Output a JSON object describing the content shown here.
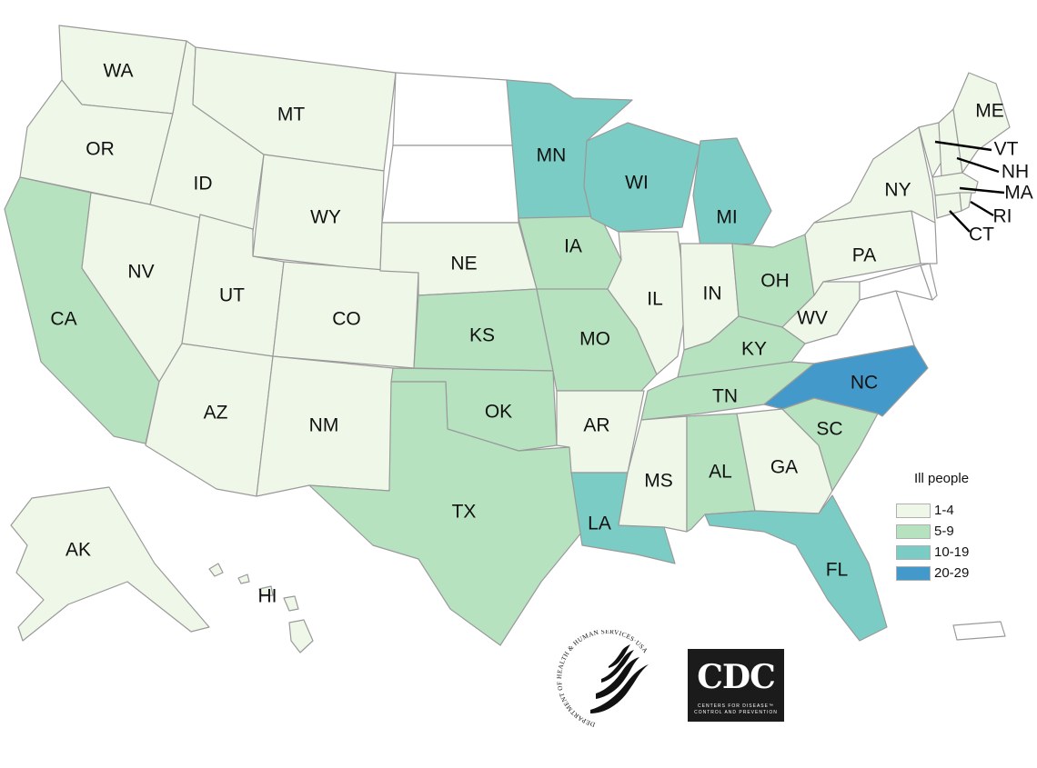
{
  "colors": {
    "bin_1_4": "#eff7e8",
    "bin_5_9": "#b6e2c0",
    "bin_10_19": "#7accc5",
    "bin_20_29": "#4499cb",
    "none": "#ffffff",
    "border": "#9a9a9a"
  },
  "legend": {
    "title": "Ill people",
    "items": [
      {
        "label": "1-4",
        "bin": "bin_1_4"
      },
      {
        "label": "5-9",
        "bin": "bin_5_9"
      },
      {
        "label": "10-19",
        "bin": "bin_10_19"
      },
      {
        "label": "20-29",
        "bin": "bin_20_29"
      }
    ]
  },
  "states": {
    "WA": {
      "label": "WA",
      "bin": "bin_1_4"
    },
    "OR": {
      "label": "OR",
      "bin": "bin_1_4"
    },
    "CA": {
      "label": "CA",
      "bin": "bin_5_9"
    },
    "NV": {
      "label": "NV",
      "bin": "bin_1_4"
    },
    "ID": {
      "label": "ID",
      "bin": "bin_1_4"
    },
    "MT": {
      "label": "MT",
      "bin": "bin_1_4"
    },
    "WY": {
      "label": "WY",
      "bin": "bin_1_4"
    },
    "UT": {
      "label": "UT",
      "bin": "bin_1_4"
    },
    "AZ": {
      "label": "AZ",
      "bin": "bin_1_4"
    },
    "CO": {
      "label": "CO",
      "bin": "bin_1_4"
    },
    "NM": {
      "label": "NM",
      "bin": "bin_1_4"
    },
    "ND": {
      "label": "",
      "bin": "none"
    },
    "SD": {
      "label": "",
      "bin": "none"
    },
    "NE": {
      "label": "NE",
      "bin": "bin_1_4"
    },
    "KS": {
      "label": "KS",
      "bin": "bin_5_9"
    },
    "OK": {
      "label": "OK",
      "bin": "bin_5_9"
    },
    "TX": {
      "label": "TX",
      "bin": "bin_5_9"
    },
    "MN": {
      "label": "MN",
      "bin": "bin_10_19"
    },
    "IA": {
      "label": "IA",
      "bin": "bin_5_9"
    },
    "MO": {
      "label": "MO",
      "bin": "bin_5_9"
    },
    "AR": {
      "label": "AR",
      "bin": "bin_1_4"
    },
    "LA": {
      "label": "LA",
      "bin": "bin_10_19"
    },
    "WI": {
      "label": "WI",
      "bin": "bin_10_19"
    },
    "IL": {
      "label": "IL",
      "bin": "bin_1_4"
    },
    "MI": {
      "label": "MI",
      "bin": "bin_10_19"
    },
    "IN": {
      "label": "IN",
      "bin": "bin_1_4"
    },
    "OH": {
      "label": "OH",
      "bin": "bin_5_9"
    },
    "KY": {
      "label": "KY",
      "bin": "bin_5_9"
    },
    "TN": {
      "label": "TN",
      "bin": "bin_5_9"
    },
    "MS": {
      "label": "MS",
      "bin": "bin_1_4"
    },
    "AL": {
      "label": "AL",
      "bin": "bin_5_9"
    },
    "GA": {
      "label": "GA",
      "bin": "bin_1_4"
    },
    "FL": {
      "label": "FL",
      "bin": "bin_10_19"
    },
    "SC": {
      "label": "SC",
      "bin": "bin_5_9"
    },
    "NC": {
      "label": "NC",
      "bin": "bin_20_29"
    },
    "VA": {
      "label": "",
      "bin": "none"
    },
    "WV": {
      "label": "WV",
      "bin": "bin_1_4"
    },
    "PA": {
      "label": "PA",
      "bin": "bin_1_4"
    },
    "NY": {
      "label": "NY",
      "bin": "bin_1_4"
    },
    "ME": {
      "label": "ME",
      "bin": "bin_1_4"
    },
    "VT": {
      "label": "VT",
      "bin": "bin_1_4"
    },
    "NH": {
      "label": "NH",
      "bin": "bin_1_4"
    },
    "MA": {
      "label": "MA",
      "bin": "bin_1_4"
    },
    "RI": {
      "label": "RI",
      "bin": "bin_1_4"
    },
    "CT": {
      "label": "CT",
      "bin": "bin_1_4"
    },
    "NJ": {
      "label": "",
      "bin": "none"
    },
    "MD": {
      "label": "",
      "bin": "none"
    },
    "DE": {
      "label": "",
      "bin": "none"
    },
    "AK": {
      "label": "AK",
      "bin": "bin_1_4"
    },
    "HI": {
      "label": "HI",
      "bin": "bin_1_4"
    },
    "PR": {
      "label": "",
      "bin": "none"
    }
  },
  "logos": {
    "hhs_text": "DEPARTMENT OF HEALTH & HUMAN SERVICES·USA",
    "cdc_text": "CDC",
    "cdc_sub1": "CENTERS FOR DISEASE™",
    "cdc_sub2": "CONTROL AND PREVENTION"
  }
}
